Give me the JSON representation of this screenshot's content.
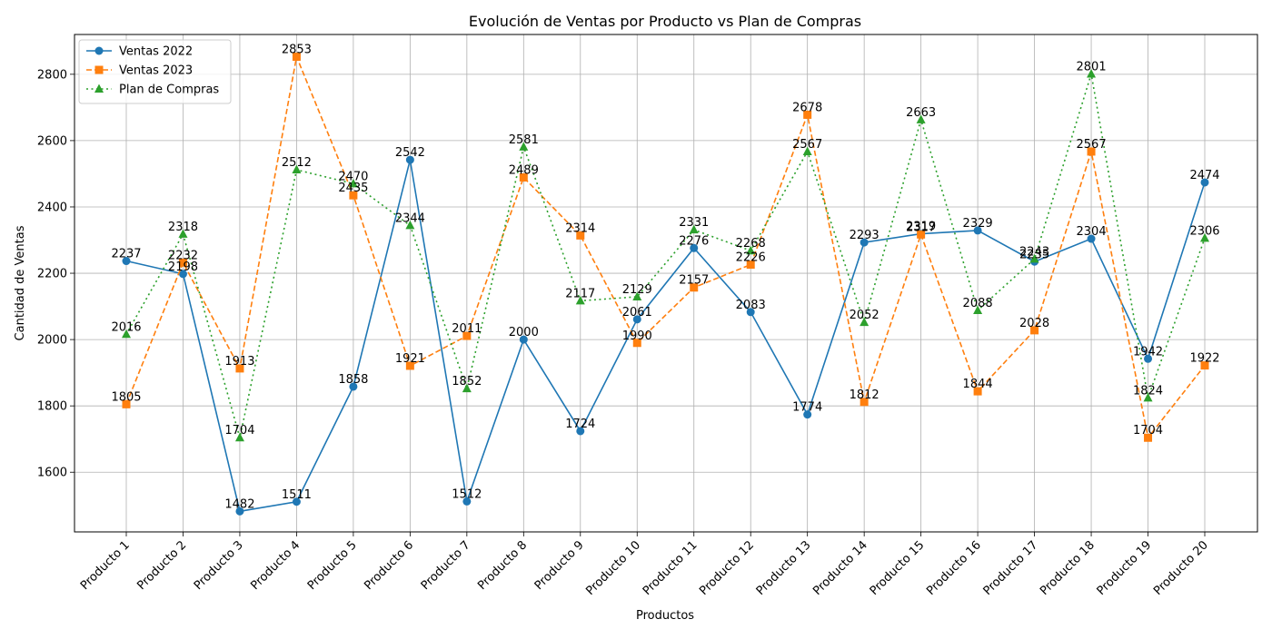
{
  "chart_data": {
    "type": "line",
    "title": "Evolución de Ventas por Producto vs Plan de Compras",
    "xlabel": "Productos",
    "ylabel": "Cantidad de Ventas",
    "categories": [
      "Producto 1",
      "Producto 2",
      "Producto 3",
      "Producto 4",
      "Producto 5",
      "Producto 6",
      "Producto 7",
      "Producto 8",
      "Producto 9",
      "Producto 10",
      "Producto 11",
      "Producto 12",
      "Producto 13",
      "Producto 14",
      "Producto 15",
      "Producto 16",
      "Producto 17",
      "Producto 18",
      "Producto 19",
      "Producto 20"
    ],
    "ylim": [
      1420,
      2920
    ],
    "yticks": [
      1600,
      1800,
      2000,
      2200,
      2400,
      2600,
      2800
    ],
    "grid": true,
    "legend_position": "top-left",
    "series": [
      {
        "name": "Ventas 2022",
        "color": "#1f77b4",
        "linestyle": "solid",
        "marker": "circle",
        "values": [
          2237,
          2198,
          1482,
          1511,
          1858,
          2542,
          1512,
          2000,
          1724,
          2061,
          2276,
          2083,
          1774,
          2293,
          2319,
          2329,
          2235,
          2304,
          1942,
          2474
        ]
      },
      {
        "name": "Ventas 2023",
        "color": "#ff7f0e",
        "linestyle": "dashed",
        "marker": "square",
        "values": [
          1805,
          2232,
          1913,
          2853,
          2435,
          1921,
          2011,
          2489,
          2314,
          1990,
          2157,
          2226,
          2678,
          1812,
          2317,
          1844,
          2028,
          2567,
          1704,
          1922
        ]
      },
      {
        "name": "Plan de Compras",
        "color": "#2ca02c",
        "linestyle": "dotted",
        "marker": "triangle",
        "values": [
          2016,
          2318,
          1704,
          2512,
          2470,
          2344,
          1852,
          2581,
          2117,
          2129,
          2331,
          2268,
          2567,
          2052,
          2663,
          2088,
          2243,
          2801,
          1824,
          2306
        ]
      }
    ]
  }
}
